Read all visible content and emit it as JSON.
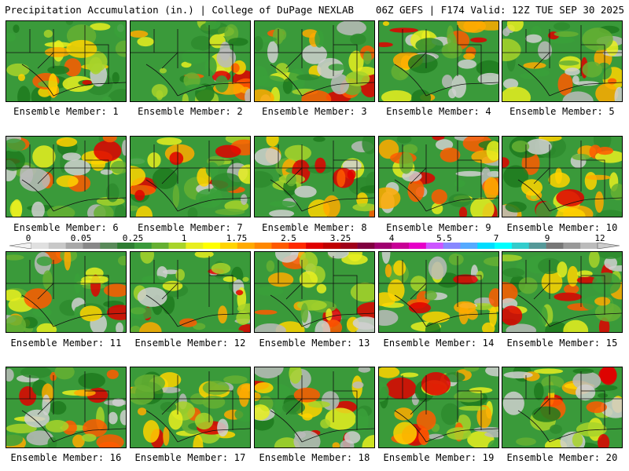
{
  "header": {
    "title_left": "Precipitation Accumulation (in.) | College of DuPage NEXLAB",
    "title_right": "06Z GEFS | F174 Valid: 12Z TUE SEP 30 2025"
  },
  "caption_prefix": "Ensemble Member: ",
  "members": [
    {
      "id": 1,
      "caption": "Ensemble Member: 1"
    },
    {
      "id": 2,
      "caption": "Ensemble Member: 2"
    },
    {
      "id": 3,
      "caption": "Ensemble Member: 3"
    },
    {
      "id": 4,
      "caption": "Ensemble Member: 4"
    },
    {
      "id": 5,
      "caption": "Ensemble Member: 5"
    },
    {
      "id": 6,
      "caption": "Ensemble Member: 6"
    },
    {
      "id": 7,
      "caption": "Ensemble Member: 7"
    },
    {
      "id": 8,
      "caption": "Ensemble Member: 8"
    },
    {
      "id": 9,
      "caption": "Ensemble Member: 9"
    },
    {
      "id": 10,
      "caption": "Ensemble Member: 10"
    },
    {
      "id": 11,
      "caption": "Ensemble Member: 11"
    },
    {
      "id": 12,
      "caption": "Ensemble Member: 12"
    },
    {
      "id": 13,
      "caption": "Ensemble Member: 13"
    },
    {
      "id": 14,
      "caption": "Ensemble Member: 14"
    },
    {
      "id": 15,
      "caption": "Ensemble Member: 15"
    },
    {
      "id": 16,
      "caption": "Ensemble Member: 16"
    },
    {
      "id": 17,
      "caption": "Ensemble Member: 17"
    },
    {
      "id": 18,
      "caption": "Ensemble Member: 18"
    },
    {
      "id": 19,
      "caption": "Ensemble Member: 19"
    },
    {
      "id": 20,
      "caption": "Ensemble Member: 20"
    }
  ],
  "colorbar": {
    "tick_labels": [
      "0",
      "0.05",
      "0.25",
      "1",
      "1.75",
      "2.5",
      "3.25",
      "4",
      "5.5",
      "7",
      "9",
      "12"
    ],
    "colors": [
      "#e0e0e0",
      "#c8c8c8",
      "#a8a8a8",
      "#888888",
      "#5a8a5a",
      "#2e7d32",
      "#3a9a3a",
      "#66b032",
      "#a8d42a",
      "#e8ee20",
      "#ffff00",
      "#ffd400",
      "#ffaa00",
      "#ff8800",
      "#ff5a00",
      "#ff2a00",
      "#e00000",
      "#c00000",
      "#a0001a",
      "#800040",
      "#a00070",
      "#c80096",
      "#e600c8",
      "#cc55ff",
      "#8888ff",
      "#55aaff",
      "#00ddff",
      "#00ffff",
      "#33cccc",
      "#559999",
      "#777777",
      "#999999",
      "#bbbbbb"
    ]
  }
}
